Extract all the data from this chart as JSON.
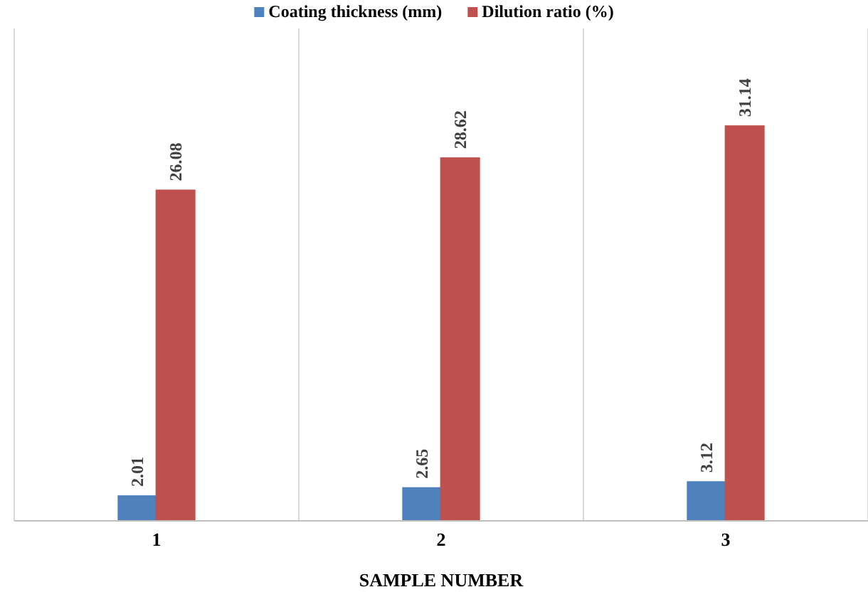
{
  "chart_data": {
    "type": "bar",
    "xlabel": "SAMPLE NUMBER",
    "categories": [
      "1",
      "2",
      "3"
    ],
    "series": [
      {
        "name": "Coating thickness (mm)",
        "color": "#4f81bd",
        "values": [
          2.01,
          2.65,
          3.12
        ]
      },
      {
        "name": "Dilution ratio (%)",
        "color": "#c0504d",
        "values": [
          26.08,
          28.62,
          31.14
        ]
      }
    ],
    "data_labels": true,
    "grid": "x",
    "legend": "top",
    "tick_labels": "x"
  }
}
